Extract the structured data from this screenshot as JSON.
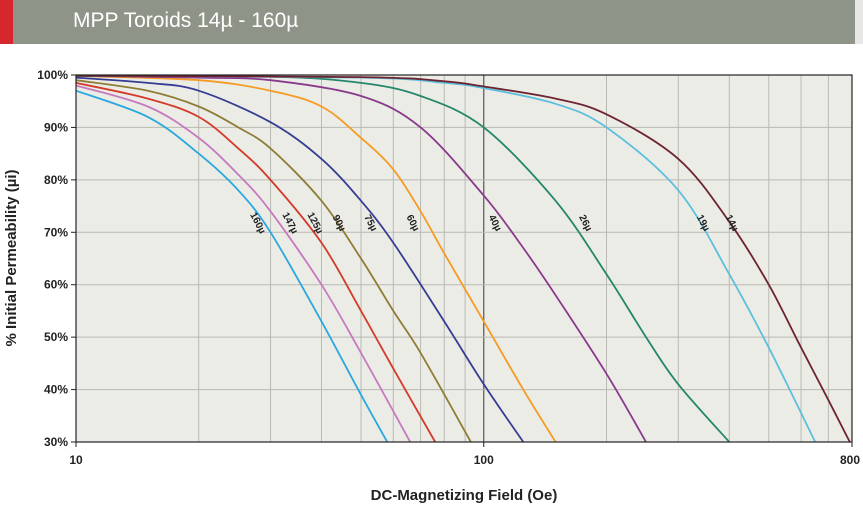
{
  "header": {
    "title": "MPP Toroids 14µ - 160µ"
  },
  "colors": {
    "header_bg": "#8e9588",
    "accent": "#d8262f",
    "plot_bg": "#ecece7",
    "grid": "#b9bab4"
  },
  "chart_data": {
    "type": "line",
    "title": "MPP Toroids 14µ - 160µ",
    "xlabel": "DC-Magnetizing Field (Oe)",
    "ylabel": "% Initial Permeability (µi)",
    "xscale": "log",
    "xlim": [
      10,
      800
    ],
    "ylim": [
      30,
      100
    ],
    "grid": true,
    "legend": "none (inline curve labels)",
    "x_tick_labels": [
      "10",
      "100",
      "800"
    ],
    "y_tick_labels": [
      "30%",
      "40%",
      "50%",
      "60%",
      "70%",
      "80%",
      "90%",
      "100%"
    ],
    "series": [
      {
        "name": "160µ",
        "color": "#29a8de",
        "x": [
          10,
          15,
          20,
          25,
          30,
          40,
          50,
          58
        ],
        "y": [
          97,
          92,
          85,
          78,
          70,
          53,
          39,
          30
        ]
      },
      {
        "name": "147µ",
        "color": "#c779c0",
        "x": [
          10,
          15,
          20,
          25,
          30,
          40,
          50,
          66
        ],
        "y": [
          98,
          94,
          88,
          81,
          74,
          60,
          47,
          30
        ]
      },
      {
        "name": "125µ",
        "color": "#d33a2a",
        "x": [
          10,
          15,
          20,
          25,
          30,
          40,
          50,
          60,
          76
        ],
        "y": [
          98.5,
          95.5,
          92,
          86,
          80,
          68,
          55,
          44,
          30
        ]
      },
      {
        "name": "90µ",
        "color": "#8e7d36",
        "x": [
          10,
          15,
          20,
          25,
          30,
          40,
          50,
          60,
          70,
          93
        ],
        "y": [
          99,
          97,
          94,
          90,
          86,
          76,
          65,
          55,
          47,
          30
        ]
      },
      {
        "name": "75µ",
        "color": "#363d94",
        "x": [
          10,
          15,
          20,
          30,
          40,
          50,
          60,
          80,
          100,
          125
        ],
        "y": [
          99.5,
          98.5,
          97,
          91,
          84,
          76,
          68,
          53,
          41,
          30
        ]
      },
      {
        "name": "60µ",
        "color": "#f49b24",
        "x": [
          10,
          20,
          30,
          40,
          50,
          60,
          70,
          80,
          100,
          125,
          150
        ],
        "y": [
          100,
          99,
          97,
          94,
          88,
          82,
          74,
          66,
          53,
          40,
          30
        ]
      },
      {
        "name": "40µ",
        "color": "#8a3a8c",
        "x": [
          10,
          20,
          30,
          50,
          70,
          100,
          125,
          150,
          200,
          250
        ],
        "y": [
          100,
          99.5,
          99,
          96,
          90,
          77,
          67,
          58,
          43,
          30
        ]
      },
      {
        "name": "26µ",
        "color": "#24866a",
        "x": [
          10,
          30,
          50,
          70,
          100,
          150,
          200,
          250,
          300,
          400
        ],
        "y": [
          100,
          99.7,
          98.5,
          96,
          90,
          76,
          62,
          50,
          41,
          30
        ]
      },
      {
        "name": "19µ",
        "color": "#5cbfdd",
        "x": [
          10,
          50,
          80,
          100,
          150,
          200,
          300,
          400,
          500,
          650
        ],
        "y": [
          100,
          99.5,
          98.5,
          97.5,
          94.5,
          90,
          78,
          62,
          48,
          30
        ]
      },
      {
        "name": "14µ",
        "color": "#6e2430",
        "x": [
          10,
          50,
          80,
          100,
          150,
          200,
          300,
          400,
          500,
          600,
          700,
          790
        ],
        "y": [
          100,
          99.6,
          98.8,
          97.8,
          95.5,
          92.5,
          84,
          72,
          60,
          48,
          38,
          30
        ]
      }
    ],
    "curve_labels": [
      {
        "text": "160µ",
        "x": 27.5,
        "y": 71.5
      },
      {
        "text": "147µ",
        "x": 33,
        "y": 71.5
      },
      {
        "text": "125µ",
        "x": 38,
        "y": 71.5
      },
      {
        "text": "90µ",
        "x": 43.5,
        "y": 71.5
      },
      {
        "text": "75µ",
        "x": 52,
        "y": 71.5
      },
      {
        "text": "60µ",
        "x": 66,
        "y": 71.5
      },
      {
        "text": "40µ",
        "x": 105,
        "y": 71.5
      },
      {
        "text": "26µ",
        "x": 175,
        "y": 71.5
      },
      {
        "text": "19µ",
        "x": 340,
        "y": 71.5
      },
      {
        "text": "14µ",
        "x": 400,
        "y": 71.5
      }
    ]
  }
}
